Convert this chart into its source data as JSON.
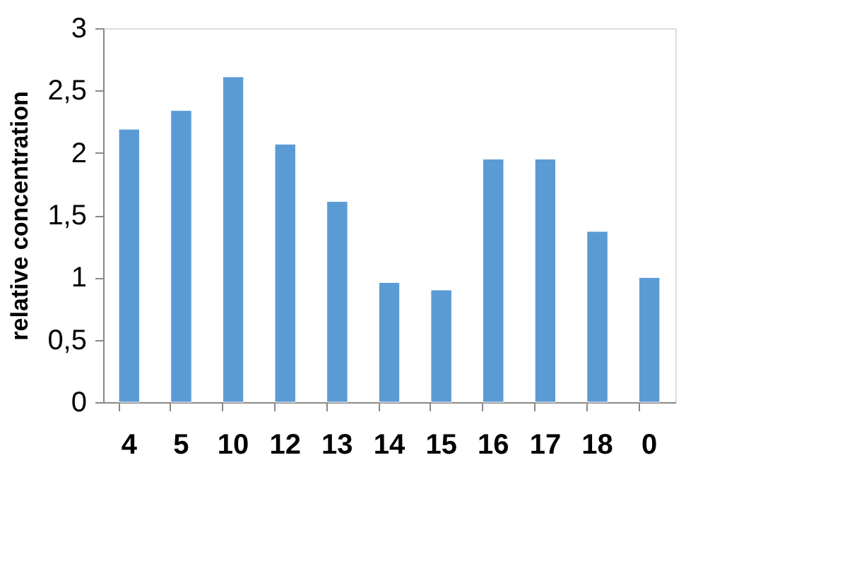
{
  "chart_data": {
    "type": "bar",
    "ylabel": "relative concentration",
    "categories": [
      "4",
      "5",
      "10",
      "12",
      "13",
      "14",
      "15",
      "16",
      "17",
      "18",
      "0"
    ],
    "values": [
      2.19,
      2.34,
      2.61,
      2.07,
      1.61,
      0.96,
      0.9,
      1.95,
      1.95,
      1.37,
      1.0
    ],
    "color": "#5b9bd5",
    "ylim": [
      0,
      3
    ],
    "yticks": [
      0,
      {
        "value": 0.5,
        "label": "0,5"
      },
      1,
      {
        "value": 1.5,
        "label": "1,5"
      },
      2,
      {
        "value": 2.5,
        "label": "2,5"
      },
      3
    ],
    "grid": false
  }
}
